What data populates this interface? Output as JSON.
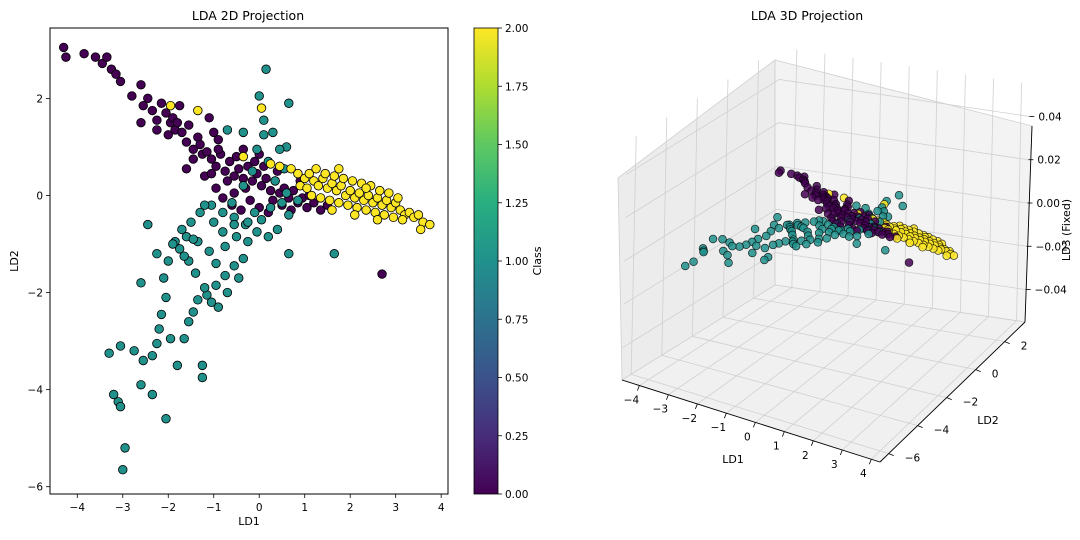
{
  "chart_data": [
    {
      "type": "scatter",
      "title": "LDA 2D Projection",
      "xlabel": "LD1",
      "ylabel": "LD2",
      "xlim": [
        -4.6,
        4.15
      ],
      "ylim": [
        -6.15,
        3.45
      ],
      "xticks": [
        "−4",
        "−3",
        "−2",
        "−1",
        "0",
        "1",
        "2",
        "3",
        "4"
      ],
      "yticks": [
        "−6",
        "−4",
        "−2",
        "0",
        "2"
      ],
      "colorbar": {
        "label": "Class",
        "range": [
          0,
          2
        ],
        "ticks": [
          "0.00",
          "0.25",
          "0.50",
          "0.75",
          "1.00",
          "1.25",
          "1.50",
          "1.75",
          "2.00"
        ]
      },
      "colormap": "viridis",
      "classes": [
        {
          "class": 0,
          "color": "#440154"
        },
        {
          "class": 1,
          "color": "#21918c"
        },
        {
          "class": 2,
          "color": "#fde725"
        }
      ],
      "grid": false,
      "series": [
        {
          "class": 0,
          "points": [
            [
              -4.3,
              3.05
            ],
            [
              -4.25,
              2.85
            ],
            [
              -3.85,
              2.92
            ],
            [
              -3.6,
              2.85
            ],
            [
              -3.45,
              2.72
            ],
            [
              -3.35,
              2.85
            ],
            [
              -3.25,
              2.6
            ],
            [
              -3.15,
              2.5
            ],
            [
              -3.05,
              2.35
            ],
            [
              -2.6,
              2.28
            ],
            [
              -2.8,
              2.05
            ],
            [
              -2.55,
              1.85
            ],
            [
              -2.45,
              2.0
            ],
            [
              -2.35,
              1.75
            ],
            [
              -2.25,
              1.55
            ],
            [
              -2.15,
              1.9
            ],
            [
              -2.05,
              1.7
            ],
            [
              -1.95,
              1.5
            ],
            [
              -1.85,
              1.35
            ],
            [
              -1.7,
              1.3
            ],
            [
              -1.6,
              1.1
            ],
            [
              -1.45,
              0.95
            ],
            [
              -1.35,
              1.2
            ],
            [
              -1.25,
              0.85
            ],
            [
              -1.15,
              0.9
            ],
            [
              -1.05,
              0.75
            ],
            [
              -0.95,
              0.6
            ],
            [
              -0.85,
              0.85
            ],
            [
              -0.75,
              0.5
            ],
            [
              -0.65,
              0.7
            ],
            [
              -0.55,
              0.4
            ],
            [
              -0.45,
              0.55
            ],
            [
              -0.35,
              0.35
            ],
            [
              -0.25,
              0.6
            ],
            [
              -0.15,
              0.3
            ],
            [
              -0.05,
              0.45
            ],
            [
              0.05,
              0.2
            ],
            [
              0.15,
              0.35
            ],
            [
              0.25,
              0.1
            ],
            [
              0.35,
              0.3
            ],
            [
              0.45,
              0.05
            ],
            [
              0.55,
              0.15
            ],
            [
              0.65,
              -0.05
            ],
            [
              0.75,
              0.1
            ],
            [
              0.85,
              -0.15
            ],
            [
              0.95,
              -0.05
            ],
            [
              1.05,
              -0.25
            ],
            [
              1.2,
              -0.15
            ],
            [
              1.35,
              -0.3
            ],
            [
              1.5,
              -0.2
            ],
            [
              -2.0,
              1.25
            ],
            [
              -1.9,
              1.6
            ],
            [
              -2.25,
              1.35
            ],
            [
              -1.8,
              1.5
            ],
            [
              -1.55,
              1.45
            ],
            [
              -1.3,
              1.05
            ],
            [
              -1.0,
              1.3
            ],
            [
              -0.9,
              0.95
            ],
            [
              -0.7,
              0.3
            ],
            [
              -0.5,
              0.8
            ],
            [
              -0.3,
              0.15
            ],
            [
              -0.1,
              0.7
            ],
            [
              0.1,
              0.6
            ],
            [
              0.3,
              -0.1
            ],
            [
              0.5,
              -0.2
            ],
            [
              -1.45,
              0.75
            ],
            [
              -1.2,
              0.4
            ],
            [
              -0.95,
              0.15
            ],
            [
              -0.8,
              -0.05
            ],
            [
              -0.6,
              -0.2
            ],
            [
              -0.4,
              -0.3
            ],
            [
              -0.2,
              -0.1
            ],
            [
              0.0,
              -0.25
            ],
            [
              -1.6,
              0.55
            ],
            [
              -1.05,
              0.45
            ],
            [
              -0.55,
              0.05
            ],
            [
              0.2,
              -0.35
            ],
            [
              0.7,
              -0.3
            ],
            [
              2.7,
              -1.62
            ],
            [
              -1.1,
              1.6
            ],
            [
              -2.6,
              1.5
            ],
            [
              -1.75,
              1.85
            ],
            [
              -0.9,
              1.15
            ],
            [
              -0.35,
              0.95
            ],
            [
              0.0,
              0.85
            ],
            [
              0.4,
              0.5
            ],
            [
              0.9,
              0.3
            ],
            [
              1.1,
              0.0
            ]
          ]
        },
        {
          "class": 1,
          "points": [
            [
              0.15,
              2.6
            ],
            [
              0.0,
              2.05
            ],
            [
              0.1,
              1.25
            ],
            [
              -0.05,
              0.95
            ],
            [
              0.2,
              0.7
            ],
            [
              -0.15,
              0.5
            ],
            [
              0.35,
              0.3
            ],
            [
              -0.35,
              0.2
            ],
            [
              0.55,
              0.55
            ],
            [
              0.6,
              0.05
            ],
            [
              0.85,
              -0.1
            ],
            [
              0.65,
              -0.4
            ],
            [
              0.4,
              -0.7
            ],
            [
              0.2,
              -0.85
            ],
            [
              -0.05,
              -0.75
            ],
            [
              -0.3,
              -0.6
            ],
            [
              -0.55,
              -0.45
            ],
            [
              -0.8,
              -0.35
            ],
            [
              -1.05,
              -0.2
            ],
            [
              -1.3,
              -0.35
            ],
            [
              -1.5,
              -0.55
            ],
            [
              -1.7,
              -0.7
            ],
            [
              -1.85,
              -0.95
            ],
            [
              -2.0,
              -1.35
            ],
            [
              -2.1,
              -1.7
            ],
            [
              -2.05,
              -2.1
            ],
            [
              -2.15,
              -2.45
            ],
            [
              -2.2,
              -2.75
            ],
            [
              -2.25,
              -3.05
            ],
            [
              -2.35,
              -3.3
            ],
            [
              -2.55,
              -3.4
            ],
            [
              -2.75,
              -3.2
            ],
            [
              -3.05,
              -3.1
            ],
            [
              -3.3,
              -3.25
            ],
            [
              -2.6,
              -3.9
            ],
            [
              -2.35,
              -4.1
            ],
            [
              -2.05,
              -4.6
            ],
            [
              -3.1,
              -4.25
            ],
            [
              -3.05,
              -4.35
            ],
            [
              -3.2,
              -4.1
            ],
            [
              -2.95,
              -5.2
            ],
            [
              -3.0,
              -5.65
            ],
            [
              -1.25,
              -3.5
            ],
            [
              -1.25,
              -3.75
            ],
            [
              -1.8,
              -3.5
            ],
            [
              -1.65,
              -2.95
            ],
            [
              -1.95,
              -2.95
            ],
            [
              -1.55,
              -2.6
            ],
            [
              -1.45,
              -2.4
            ],
            [
              -1.35,
              -2.15
            ],
            [
              -1.15,
              -2.05
            ],
            [
              -0.95,
              -1.85
            ],
            [
              -0.75,
              -1.65
            ],
            [
              -0.55,
              -1.45
            ],
            [
              -0.35,
              -1.3
            ],
            [
              -0.45,
              -1.7
            ],
            [
              -0.7,
              -2.0
            ],
            [
              -0.9,
              -2.3
            ],
            [
              -1.05,
              -2.2
            ],
            [
              -1.2,
              -1.9
            ],
            [
              -1.4,
              -1.6
            ],
            [
              -1.55,
              -1.35
            ],
            [
              -1.75,
              -1.1
            ],
            [
              -1.6,
              -0.85
            ],
            [
              -1.35,
              -0.95
            ],
            [
              -1.1,
              -1.15
            ],
            [
              -0.95,
              -1.4
            ],
            [
              -0.75,
              -1.05
            ],
            [
              -0.5,
              -0.85
            ],
            [
              -0.25,
              -0.95
            ],
            [
              0.05,
              -0.5
            ],
            [
              0.25,
              -0.25
            ],
            [
              0.5,
              -0.15
            ],
            [
              -0.1,
              -0.35
            ],
            [
              -0.6,
              -0.15
            ],
            [
              -0.35,
              1.3
            ],
            [
              -0.7,
              1.35
            ],
            [
              0.1,
              1.55
            ],
            [
              0.6,
              1.0
            ],
            [
              0.45,
              0.95
            ],
            [
              0.3,
              1.3
            ],
            [
              0.65,
              1.9
            ],
            [
              1.65,
              -1.2
            ],
            [
              0.65,
              -1.2
            ],
            [
              -1.2,
              -0.2
            ],
            [
              -0.55,
              -0.6
            ],
            [
              -1.9,
              -1.0
            ],
            [
              -2.45,
              -0.6
            ],
            [
              -2.6,
              -1.8
            ],
            [
              -2.25,
              -1.2
            ],
            [
              -1.65,
              -1.25
            ],
            [
              -1.45,
              -0.9
            ],
            [
              -0.8,
              -0.75
            ],
            [
              -0.25,
              -0.55
            ],
            [
              -1.0,
              -0.55
            ]
          ]
        },
        {
          "class": 2,
          "points": [
            [
              -1.95,
              1.85
            ],
            [
              -1.35,
              1.75
            ],
            [
              0.05,
              1.8
            ],
            [
              -0.35,
              0.8
            ],
            [
              0.45,
              0.6
            ],
            [
              0.7,
              0.55
            ],
            [
              0.85,
              0.45
            ],
            [
              1.0,
              0.35
            ],
            [
              1.1,
              0.45
            ],
            [
              1.2,
              0.3
            ],
            [
              1.3,
              0.2
            ],
            [
              1.4,
              0.35
            ],
            [
              1.5,
              0.15
            ],
            [
              1.6,
              0.25
            ],
            [
              1.7,
              0.1
            ],
            [
              1.8,
              0.2
            ],
            [
              1.9,
              0.0
            ],
            [
              2.0,
              0.1
            ],
            [
              2.1,
              -0.05
            ],
            [
              2.2,
              0.05
            ],
            [
              2.3,
              -0.1
            ],
            [
              2.4,
              0.0
            ],
            [
              2.5,
              -0.15
            ],
            [
              2.6,
              -0.05
            ],
            [
              2.7,
              -0.2
            ],
            [
              2.8,
              -0.1
            ],
            [
              2.9,
              -0.25
            ],
            [
              3.0,
              -0.15
            ],
            [
              3.1,
              -0.3
            ],
            [
              3.2,
              -0.4
            ],
            [
              3.3,
              -0.35
            ],
            [
              3.4,
              -0.45
            ],
            [
              3.5,
              -0.4
            ],
            [
              3.6,
              -0.55
            ],
            [
              3.75,
              -0.6
            ],
            [
              3.55,
              -0.7
            ],
            [
              1.15,
              0.0
            ],
            [
              1.35,
              -0.05
            ],
            [
              1.55,
              -0.1
            ],
            [
              1.75,
              -0.15
            ],
            [
              1.95,
              -0.2
            ],
            [
              2.15,
              -0.25
            ],
            [
              2.35,
              -0.3
            ],
            [
              2.55,
              -0.35
            ],
            [
              2.75,
              -0.4
            ],
            [
              2.95,
              -0.45
            ],
            [
              3.15,
              -0.5
            ],
            [
              1.25,
              0.55
            ],
            [
              1.45,
              0.45
            ],
            [
              1.65,
              0.4
            ],
            [
              1.85,
              0.35
            ],
            [
              2.05,
              0.3
            ],
            [
              2.25,
              0.25
            ],
            [
              2.45,
              0.2
            ],
            [
              2.65,
              0.1
            ],
            [
              2.85,
              0.05
            ],
            [
              3.05,
              -0.05
            ],
            [
              0.9,
              0.2
            ],
            [
              1.05,
              0.15
            ],
            [
              1.6,
              -0.3
            ],
            [
              2.1,
              -0.4
            ],
            [
              2.6,
              -0.5
            ],
            [
              0.25,
              0.65
            ],
            [
              1.75,
              0.55
            ],
            [
              2.35,
              0.15
            ]
          ]
        }
      ]
    },
    {
      "type": "scatter",
      "title": "LDA 3D Projection",
      "xlabel": "LD1",
      "ylabel": "LD2",
      "zlabel": "LD3 (Fixed)",
      "xlim": [
        -4.6,
        4.3
      ],
      "ylim": [
        -6.6,
        3.4
      ],
      "zlim": [
        -0.055,
        0.055
      ],
      "xticks": [
        "−4",
        "−3",
        "−2",
        "−1",
        "0",
        "1",
        "2",
        "3",
        "4"
      ],
      "yticks": [
        "−6",
        "−4",
        "−2",
        "0",
        "2"
      ],
      "zticks": [
        "−0.04",
        "−0.02",
        "0.00",
        "0.02",
        "0.04"
      ],
      "note_z": 0
    }
  ]
}
